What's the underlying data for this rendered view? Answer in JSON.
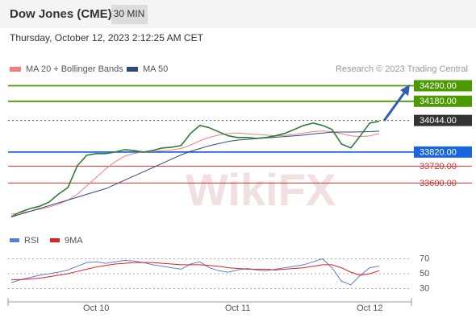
{
  "chart_data": {
    "type": "line",
    "title": "Dow Jones (CME)",
    "interval": "30 MIN",
    "subtitle": "Thursday, October 12, 2023 2:12:25 AM CET",
    "source": "Research © 2023 Trading Central",
    "watermark": "WikiFX",
    "categories": [
      null,
      null,
      null,
      null,
      null,
      null,
      null,
      null,
      null,
      "Oct 10",
      null,
      null,
      null,
      null,
      null,
      null,
      null,
      null,
      null,
      null,
      null,
      null,
      null,
      null,
      "Oct 11",
      null,
      null,
      null,
      null,
      null,
      null,
      null,
      null,
      null,
      null,
      null,
      null,
      null,
      "Oct 12",
      null
    ],
    "ylim": [
      33300,
      34350
    ],
    "close": {
      "color": "#2e7d32",
      "values": [
        33362,
        33396,
        33419,
        33436,
        33465,
        33522,
        33568,
        33723,
        33797,
        33809,
        33809,
        33820,
        33837,
        33831,
        33820,
        33831,
        33849,
        33854,
        33866,
        33952,
        34009,
        33992,
        33963,
        33935,
        33923,
        33923,
        33917,
        33923,
        33935,
        33952,
        33980,
        34009,
        34026,
        34009,
        33980,
        33877,
        33849,
        33935,
        34026,
        34038
      ]
    },
    "series": [
      {
        "name": "MA 20 + Bollinger Bands",
        "color": "#f08080",
        "values": [
          33380,
          33390,
          33400,
          33415,
          33430,
          33450,
          33480,
          33520,
          33580,
          33640,
          33700,
          33750,
          33790,
          33810,
          33820,
          33825,
          33830,
          33835,
          33845,
          33870,
          33900,
          33925,
          33940,
          33950,
          33955,
          33950,
          33945,
          33940,
          33935,
          33938,
          33945,
          33955,
          33965,
          33970,
          33965,
          33950,
          33935,
          33930,
          33935,
          33950
        ]
      },
      {
        "name": "MA 50",
        "color": "#2c4a80",
        "values": [
          33360,
          33380,
          33400,
          33420,
          33440,
          33460,
          33480,
          33500,
          33520,
          33540,
          33560,
          33590,
          33620,
          33650,
          33680,
          33710,
          33740,
          33770,
          33800,
          33825,
          33845,
          33865,
          33880,
          33895,
          33905,
          33910,
          33915,
          33920,
          33925,
          33930,
          33935,
          33940,
          33948,
          33955,
          33960,
          33962,
          33962,
          33963,
          33965,
          33968
        ]
      }
    ],
    "levels": [
      {
        "value": 34290,
        "label": "34290.00",
        "color": "#4a9a00",
        "boxed": true,
        "dashed": false
      },
      {
        "value": 34180,
        "label": "34180.00",
        "color": "#4a9a00",
        "boxed": true,
        "dashed": false
      },
      {
        "value": 34044,
        "label": "34044.00",
        "color": "#333333",
        "boxed": true,
        "dashed": true
      },
      {
        "value": 33820,
        "label": "33820.00",
        "color": "#1a66e0",
        "boxed": true,
        "dashed": false
      },
      {
        "value": 33720,
        "label": "33720.00",
        "color": "#d32f2f",
        "boxed": false,
        "dashed": false
      },
      {
        "value": 33600,
        "label": "33600.00",
        "color": "#d32f2f",
        "boxed": false,
        "dashed": false
      }
    ],
    "rsi": {
      "ylim": [
        10,
        90
      ],
      "yticks": [
        30,
        50,
        70
      ],
      "series": [
        {
          "name": "RSI",
          "color": "#5b7fd6",
          "values": [
            38,
            42,
            45,
            48,
            50,
            52,
            55,
            60,
            65,
            66,
            64,
            66,
            68,
            67,
            65,
            62,
            60,
            58,
            56,
            63,
            66,
            58,
            54,
            52,
            55,
            57,
            55,
            54,
            56,
            58,
            60,
            62,
            66,
            70,
            58,
            40,
            35,
            48,
            58,
            60
          ]
        },
        {
          "name": "9MA",
          "color": "#e02020",
          "values": [
            42,
            42,
            43,
            44,
            46,
            48,
            50,
            53,
            56,
            59,
            61,
            63,
            64,
            65,
            65,
            65,
            64,
            63,
            62,
            62,
            62,
            61,
            60,
            58,
            57,
            56,
            56,
            56,
            55,
            56,
            57,
            58,
            60,
            62,
            62,
            58,
            52,
            48,
            50,
            54
          ]
        }
      ]
    }
  }
}
